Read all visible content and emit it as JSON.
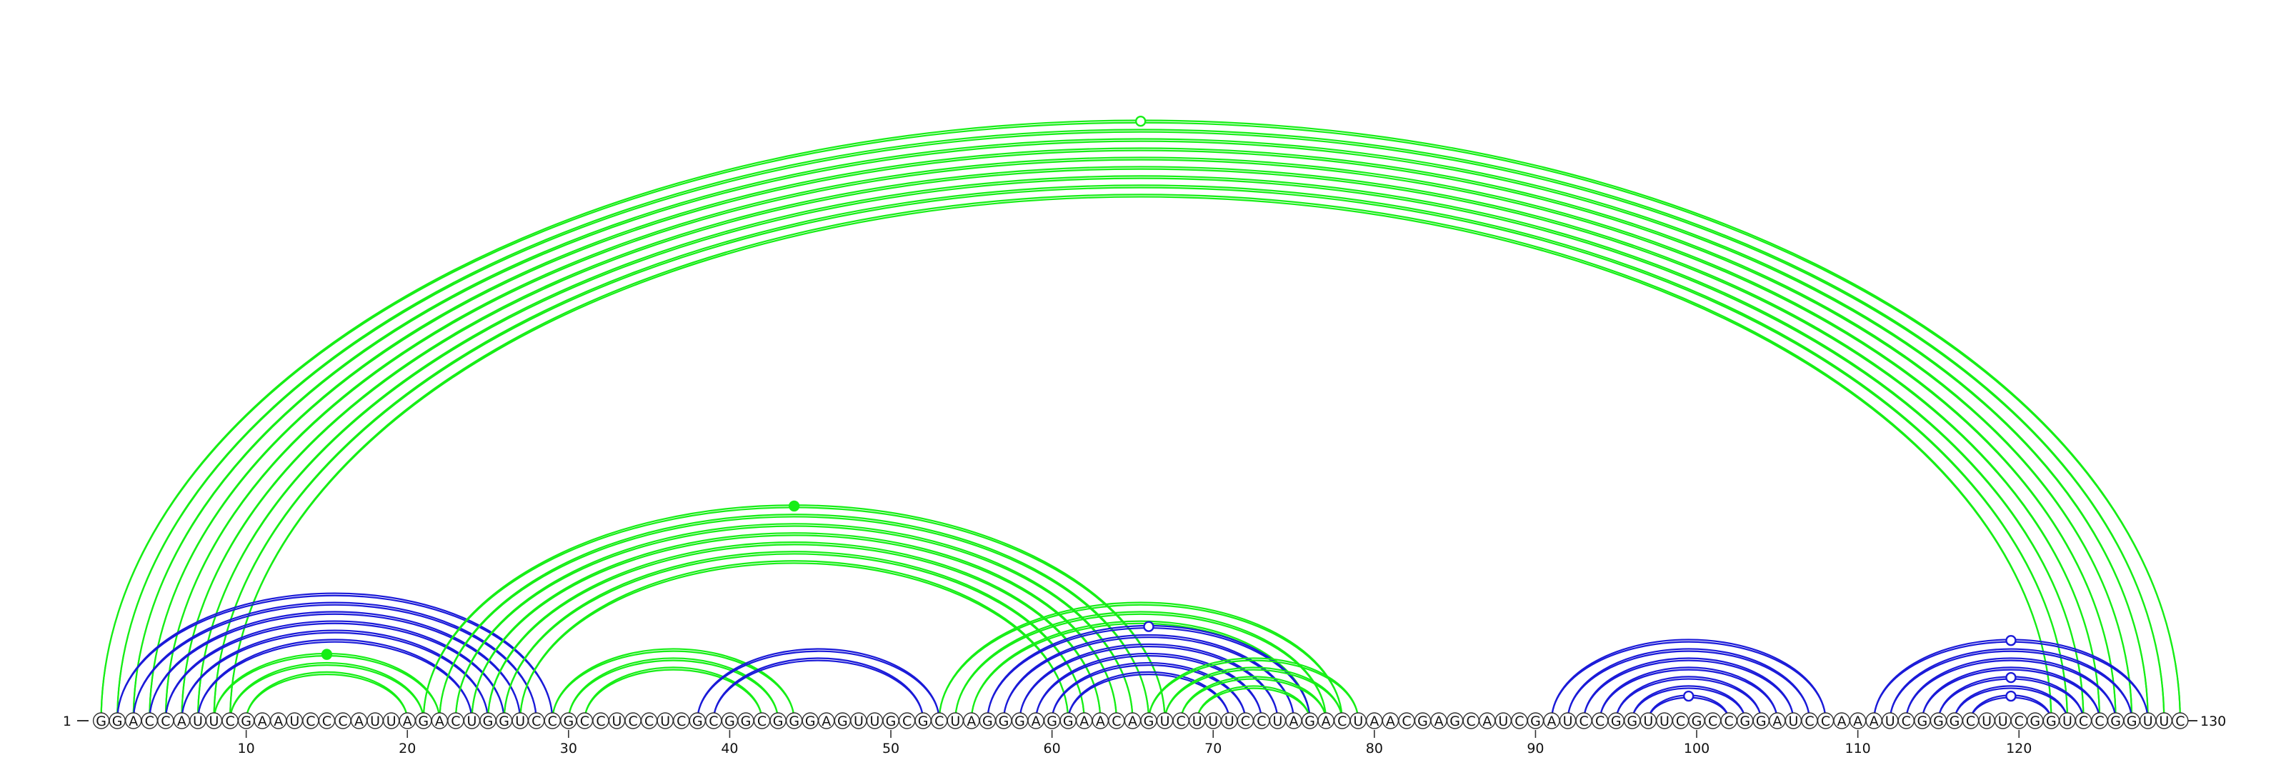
{
  "sequence": "GGACCAUUCGAAUCCCAUUAGACUGGUCCGCCUCCUCGCGGCGGGAGUUGCGCUAGGGAGGAACAGUCUUUCCUAGACUAACGAGCAUCGAUCCGGUUCGCCGGAUCCAAAUCGGGCUUCGGUCCGGUUC",
  "start_label": "1",
  "end_label": "130",
  "ticks": [
    {
      "pos": 10,
      "label": "10"
    },
    {
      "pos": 20,
      "label": "20"
    },
    {
      "pos": 30,
      "label": "30"
    },
    {
      "pos": 40,
      "label": "40"
    },
    {
      "pos": 50,
      "label": "50"
    },
    {
      "pos": 60,
      "label": "60"
    },
    {
      "pos": 70,
      "label": "70"
    },
    {
      "pos": 80,
      "label": "80"
    },
    {
      "pos": 90,
      "label": "90"
    },
    {
      "pos": 100,
      "label": "100"
    },
    {
      "pos": 110,
      "label": "110"
    },
    {
      "pos": 120,
      "label": "120"
    }
  ],
  "colors": {
    "green": "#16ee16",
    "blue": "#1a1ad8",
    "node_stroke": "#333333",
    "node_fill": "#ffffff"
  },
  "arc_groups": [
    {
      "color": "green",
      "lines": 2,
      "pairs": [
        [
          1,
          130
        ],
        [
          2,
          129
        ],
        [
          3,
          128
        ],
        [
          4,
          127
        ],
        [
          5,
          126
        ],
        [
          6,
          125
        ],
        [
          7,
          124
        ],
        [
          8,
          123
        ],
        [
          9,
          122
        ]
      ]
    },
    {
      "color": "blue",
      "lines": 2,
      "pairs": [
        [
          2,
          29
        ],
        [
          3,
          28
        ],
        [
          4,
          27
        ],
        [
          5,
          26
        ],
        [
          6,
          25
        ],
        [
          7,
          24
        ]
      ]
    },
    {
      "color": "green",
      "lines": 2,
      "pairs": [
        [
          8,
          22
        ],
        [
          9,
          21
        ],
        [
          10,
          20
        ]
      ]
    },
    {
      "color": "green",
      "lines": 2,
      "pairs": [
        [
          21,
          67
        ],
        [
          22,
          66
        ],
        [
          23,
          65
        ],
        [
          24,
          64
        ],
        [
          25,
          63
        ],
        [
          26,
          62
        ],
        [
          27,
          61
        ]
      ]
    },
    {
      "color": "green",
      "lines": 2,
      "pairs": [
        [
          29,
          44
        ],
        [
          30,
          43
        ],
        [
          31,
          42
        ]
      ]
    },
    {
      "color": "blue",
      "lines": 2,
      "pairs": [
        [
          38,
          53
        ],
        [
          39,
          52
        ]
      ]
    },
    {
      "color": "green",
      "lines": 2,
      "pairs": [
        [
          53,
          78
        ],
        [
          54,
          77
        ],
        [
          55,
          76
        ]
      ]
    },
    {
      "color": "blue",
      "lines": 2,
      "pairs": [
        [
          56,
          76
        ],
        [
          57,
          75
        ],
        [
          58,
          74
        ],
        [
          59,
          73
        ],
        [
          60,
          72
        ],
        [
          61,
          71
        ]
      ]
    },
    {
      "color": "green",
      "lines": 2,
      "pairs": [
        [
          66,
          79
        ],
        [
          67,
          78
        ],
        [
          68,
          77
        ],
        [
          69,
          76
        ]
      ]
    },
    {
      "color": "blue",
      "lines": 2,
      "pairs": [
        [
          91,
          108
        ],
        [
          92,
          107
        ],
        [
          93,
          106
        ],
        [
          94,
          105
        ],
        [
          95,
          104
        ],
        [
          96,
          103
        ],
        [
          97,
          102
        ]
      ]
    },
    {
      "color": "blue",
      "lines": 2,
      "pairs": [
        [
          111,
          128
        ],
        [
          112,
          127
        ],
        [
          113,
          126
        ],
        [
          114,
          125
        ],
        [
          115,
          124
        ],
        [
          116,
          123
        ],
        [
          117,
          122
        ]
      ]
    }
  ],
  "markers": [
    {
      "color": "green",
      "filled": false,
      "i": 1,
      "j": 130
    },
    {
      "color": "green",
      "filled": true,
      "i": 21,
      "j": 67
    },
    {
      "color": "green",
      "filled": true,
      "i": 8,
      "j": 22
    },
    {
      "color": "blue",
      "filled": false,
      "i": 56,
      "j": 76
    },
    {
      "color": "blue",
      "filled": false,
      "i": 97,
      "j": 102
    },
    {
      "color": "blue",
      "filled": false,
      "i": 111,
      "j": 128
    },
    {
      "color": "blue",
      "filled": false,
      "i": 115,
      "j": 124
    },
    {
      "color": "blue",
      "filled": false,
      "i": 117,
      "j": 122
    }
  ]
}
